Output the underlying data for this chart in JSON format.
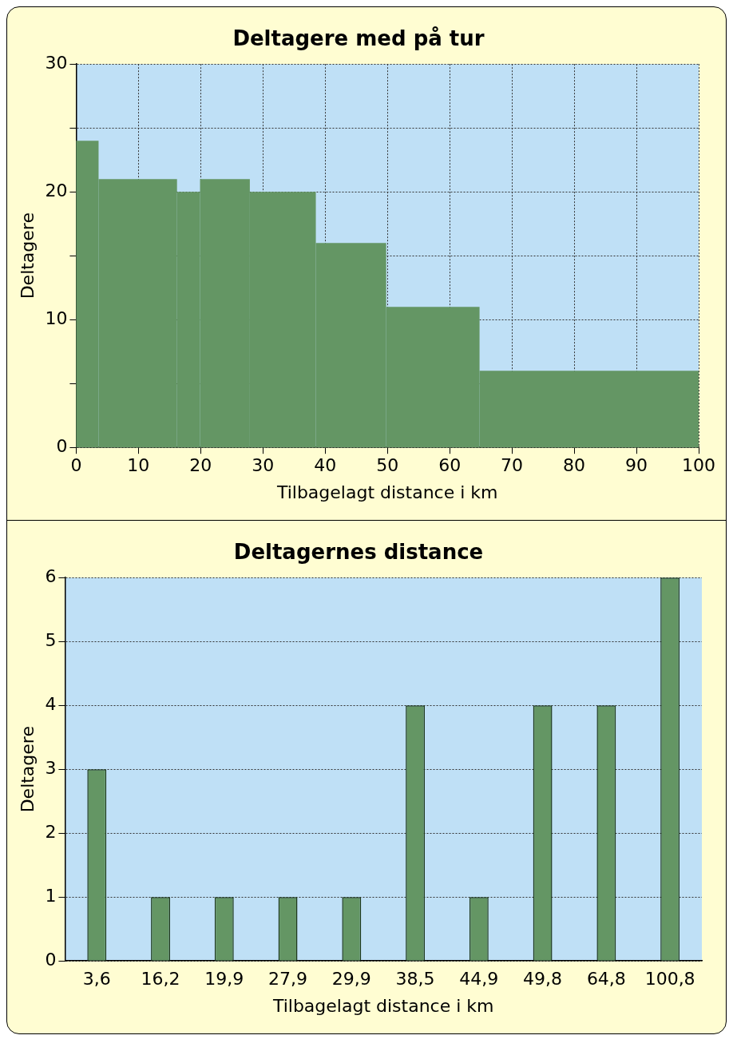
{
  "chart_data": [
    {
      "type": "histogram",
      "title": "Deltagere med på tur",
      "xlabel": "Tilbagelagt distance i km",
      "ylabel": "Deltagere",
      "bins": [
        0,
        3.6,
        16.2,
        19.9,
        27.9,
        38.5,
        49.8,
        64.8,
        100
      ],
      "values": [
        24,
        21,
        20,
        21,
        20,
        16,
        11,
        6
      ],
      "color": "#649664",
      "xlim": [
        0,
        100
      ],
      "xticks": [
        0,
        10,
        20,
        30,
        40,
        50,
        60,
        70,
        80,
        90,
        100
      ],
      "ylim": [
        0,
        30
      ],
      "yticks": [
        0,
        {
          "value": 5,
          "label": null
        },
        10,
        {
          "value": 15,
          "label": null
        },
        20,
        {
          "value": 25,
          "label": null
        },
        30
      ],
      "grid": true,
      "legend": false
    },
    {
      "type": "bar",
      "title": "Deltagernes distance",
      "xlabel": "Tilbagelagt distance i km",
      "ylabel": "Deltagere",
      "categories": [
        "3,6",
        "16,2",
        "19,9",
        "27,9",
        "29,9",
        "38,5",
        "44,9",
        "49,8",
        "64,8",
        "100,8"
      ],
      "series": [
        {
          "color": "#649664",
          "values": [
            3,
            1,
            1,
            1,
            1,
            4,
            1,
            4,
            4,
            6
          ]
        }
      ],
      "ylim": [
        0,
        6
      ],
      "yticks": [
        0,
        1,
        2,
        3,
        4,
        5,
        6
      ],
      "grid": "y",
      "legend": false
    }
  ]
}
